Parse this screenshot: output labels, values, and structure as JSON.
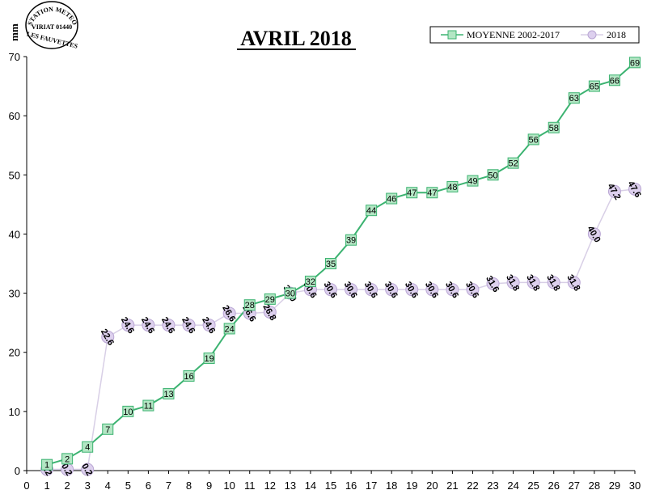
{
  "chart_data": {
    "type": "line",
    "title": "AVRIL 2018",
    "ylabel": "mm",
    "xlim": [
      0,
      30
    ],
    "ylim": [
      0,
      70
    ],
    "x_ticks": [
      0,
      1,
      2,
      3,
      4,
      5,
      6,
      7,
      8,
      9,
      10,
      11,
      12,
      13,
      14,
      15,
      16,
      17,
      18,
      19,
      20,
      21,
      22,
      23,
      24,
      25,
      26,
      27,
      28,
      29,
      30
    ],
    "y_ticks": [
      0,
      10,
      20,
      30,
      40,
      50,
      60,
      70
    ],
    "grid": false,
    "legend_position": "top-right",
    "series": [
      {
        "name": "MOYENNE 2002-2017",
        "color": "#3cb371",
        "marker": "square",
        "marker_fill": "#b3e6c4",
        "x": [
          1,
          2,
          3,
          4,
          5,
          6,
          7,
          8,
          9,
          10,
          11,
          12,
          13,
          14,
          15,
          16,
          17,
          18,
          19,
          20,
          21,
          22,
          23,
          24,
          25,
          26,
          27,
          28,
          29,
          30
        ],
        "values": [
          1,
          2,
          4,
          7,
          10,
          11,
          13,
          16,
          19,
          24,
          28,
          29,
          30,
          32,
          35,
          39,
          44,
          46,
          47,
          47,
          48,
          49,
          50,
          52,
          56,
          58,
          63,
          65,
          66,
          69
        ],
        "labels": [
          "1",
          "2",
          "4",
          "7",
          "10",
          "11",
          "13",
          "16",
          "19",
          "24",
          "28",
          "29",
          "30",
          "32",
          "35",
          "39",
          "44",
          "46",
          "47",
          "47",
          "48",
          "49",
          "50",
          "52",
          "56",
          "58",
          "63",
          "65",
          "66",
          "69"
        ]
      },
      {
        "name": "2018",
        "color": "#d8cfe6",
        "marker": "circle",
        "marker_fill": "#ddd0ee",
        "x": [
          1,
          2,
          3,
          4,
          5,
          6,
          7,
          8,
          9,
          10,
          11,
          12,
          13,
          14,
          15,
          16,
          17,
          18,
          19,
          20,
          21,
          22,
          23,
          24,
          25,
          26,
          27,
          28,
          29,
          30
        ],
        "values": [
          0.2,
          0.2,
          0.2,
          22.6,
          24.6,
          24.6,
          24.6,
          24.6,
          24.6,
          26.6,
          26.6,
          26.8,
          30.0,
          30.6,
          30.6,
          30.6,
          30.6,
          30.6,
          30.6,
          30.6,
          30.6,
          30.6,
          31.6,
          31.8,
          31.8,
          31.8,
          31.8,
          40.0,
          47.2,
          47.6
        ],
        "labels": [
          "0.2",
          "0.2",
          "0.2",
          "22.6",
          "24.6",
          "24.6",
          "24.6",
          "24.6",
          "24.6",
          "26.6",
          "26.6",
          "26.8",
          "30.0",
          "30.6",
          "30.6",
          "30.6",
          "30.6",
          "30.6",
          "30.6",
          "30.6",
          "30.6",
          "30.6",
          "31.6",
          "31.8",
          "31.8",
          "31.8",
          "31.8",
          "40.0",
          "47.2",
          "47.6"
        ]
      }
    ]
  },
  "stamp": {
    "line1": "STATION METEO",
    "line2": "VIRIAT 01440",
    "line3": "LES FAUVETTES"
  }
}
